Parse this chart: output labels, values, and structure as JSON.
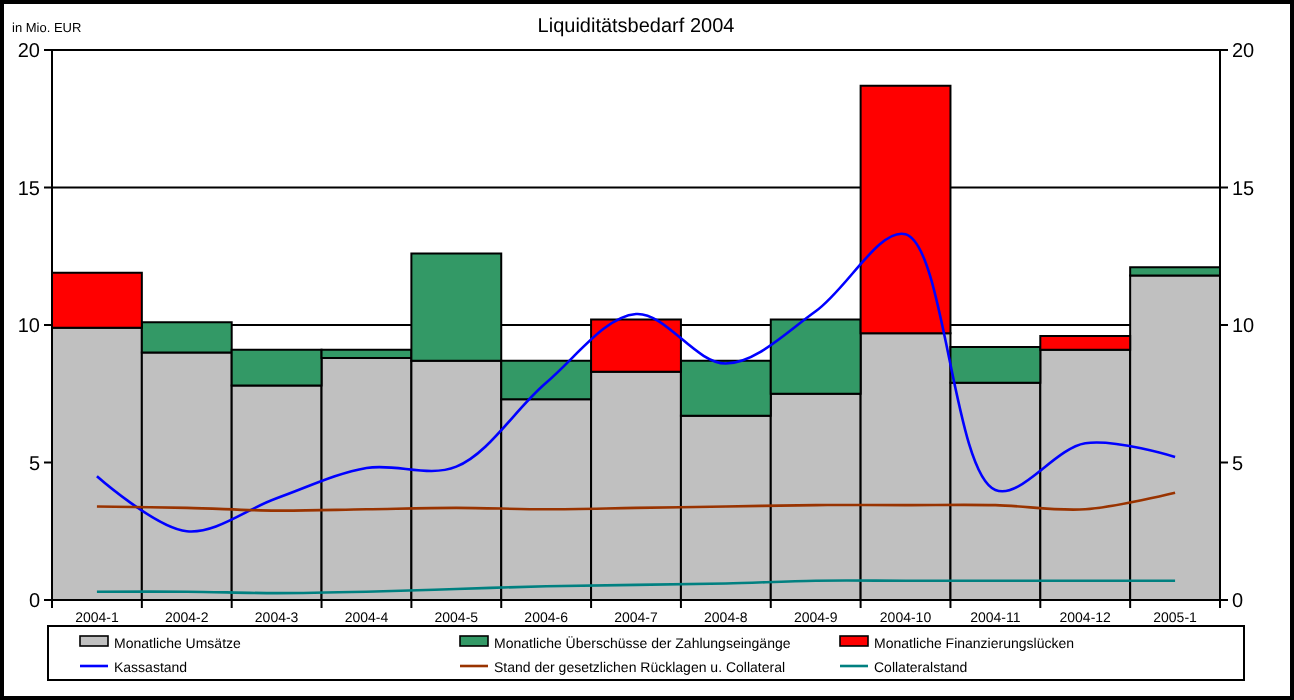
{
  "chart_data": {
    "type": "bar",
    "title": "Liquiditätsbedarf 2004",
    "ylabel": "in Mio. EUR",
    "stacked": true,
    "categories": [
      "2004-1",
      "2004-2",
      "2004-3",
      "2004-4",
      "2004-5",
      "2004-6",
      "2004-7",
      "2004-8",
      "2004-9",
      "2004-10",
      "2004-11",
      "2004-12",
      "2005-1"
    ],
    "series": [
      {
        "name": "Monatliche Umsätze",
        "color": "#c0c0c0",
        "values": [
          9.9,
          9.0,
          7.8,
          8.8,
          8.7,
          7.3,
          8.3,
          6.7,
          7.5,
          9.7,
          7.9,
          9.1,
          11.8
        ]
      },
      {
        "name": "Monatliche Überschüsse der Zahlungseingänge",
        "color": "#339966",
        "values": [
          null,
          1.1,
          1.3,
          0.3,
          3.9,
          1.4,
          null,
          2.0,
          2.7,
          null,
          1.3,
          null,
          0.3
        ]
      },
      {
        "name": "Monatliche Finanzierungslücken",
        "color": "#ff0000",
        "values": [
          2.0,
          null,
          null,
          null,
          null,
          null,
          1.9,
          null,
          null,
          9.0,
          null,
          0.5,
          null
        ]
      },
      {
        "type": "line",
        "name": "Kassastand",
        "color": "#0000ff",
        "values": [
          4.5,
          2.5,
          3.7,
          4.8,
          4.85,
          7.9,
          10.4,
          8.6,
          10.5,
          13.3,
          4.0,
          5.7,
          5.2
        ]
      },
      {
        "type": "line",
        "name": "Stand der gesetzlichen Rücklagen u. Collateral",
        "color": "#993300",
        "values": [
          3.4,
          3.35,
          3.25,
          3.3,
          3.35,
          3.3,
          3.35,
          3.4,
          3.45,
          3.45,
          3.45,
          3.3,
          3.9
        ]
      },
      {
        "type": "line",
        "name": "Collateralstand",
        "color": "#008080",
        "values": [
          0.3,
          0.3,
          0.25,
          0.3,
          0.4,
          0.5,
          0.55,
          0.6,
          0.7,
          0.7,
          0.7,
          0.7,
          0.7
        ]
      }
    ],
    "ylim": [
      0,
      20
    ],
    "yticks": [
      0,
      5,
      10,
      15,
      20
    ],
    "y2lim": [
      0,
      20
    ],
    "y2ticks": [
      0,
      5,
      10,
      15,
      20
    ],
    "grid": "y",
    "legend": "bottom",
    "marker": "none",
    "line_style": "solid"
  }
}
